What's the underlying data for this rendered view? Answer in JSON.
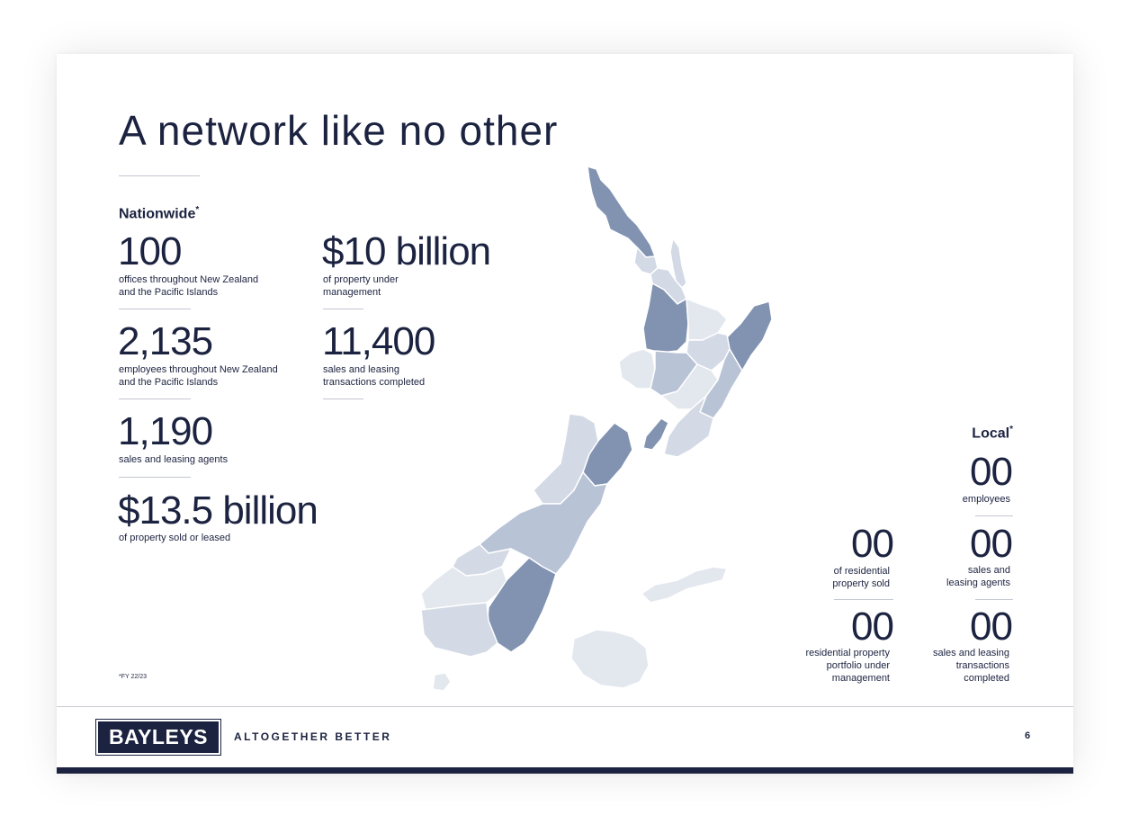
{
  "title": "A network like no other",
  "nationwide": {
    "heading": "Nationwide",
    "mark": "*",
    "stats": [
      {
        "value": "100",
        "desc_line1": "offices throughout New Zealand",
        "desc_line2": "and the Pacific Islands"
      },
      {
        "value": "2,135",
        "desc_line1": "employees throughout New Zealand",
        "desc_line2": "and the Pacific Islands"
      },
      {
        "value": "1,190",
        "desc_line1": "sales and leasing agents",
        "desc_line2": ""
      },
      {
        "value": "$13.5 billion",
        "desc_line1": "of property sold or leased",
        "desc_line2": ""
      },
      {
        "value": "$10 billion",
        "desc_line1": "of property under",
        "desc_line2": "management"
      },
      {
        "value": "11,400",
        "desc_line1": "sales and leasing",
        "desc_line2": "transactions completed"
      }
    ]
  },
  "local": {
    "heading": "Local",
    "mark": "*",
    "stats": [
      {
        "value": "00",
        "lines": [
          "employees"
        ]
      },
      {
        "value": "00",
        "lines": [
          "of residential",
          "property sold"
        ]
      },
      {
        "value": "00",
        "lines": [
          "sales and",
          "leasing agents"
        ]
      },
      {
        "value": "00",
        "lines": [
          "residential property",
          "portfolio under",
          "management"
        ]
      },
      {
        "value": "00",
        "lines": [
          "sales and leasing",
          "transactions",
          "completed"
        ]
      }
    ]
  },
  "footnote": "*FY 22/23",
  "footer": {
    "logo": "BAYLEYS",
    "tagline": "ALTOGETHER BETTER",
    "page_number": "6"
  },
  "colors": {
    "navy": "#1c2340",
    "region_dark": "#8193b1",
    "region_mid": "#b8c3d6",
    "region_light": "#d3dae5",
    "region_pale": "#e3e7ee"
  }
}
